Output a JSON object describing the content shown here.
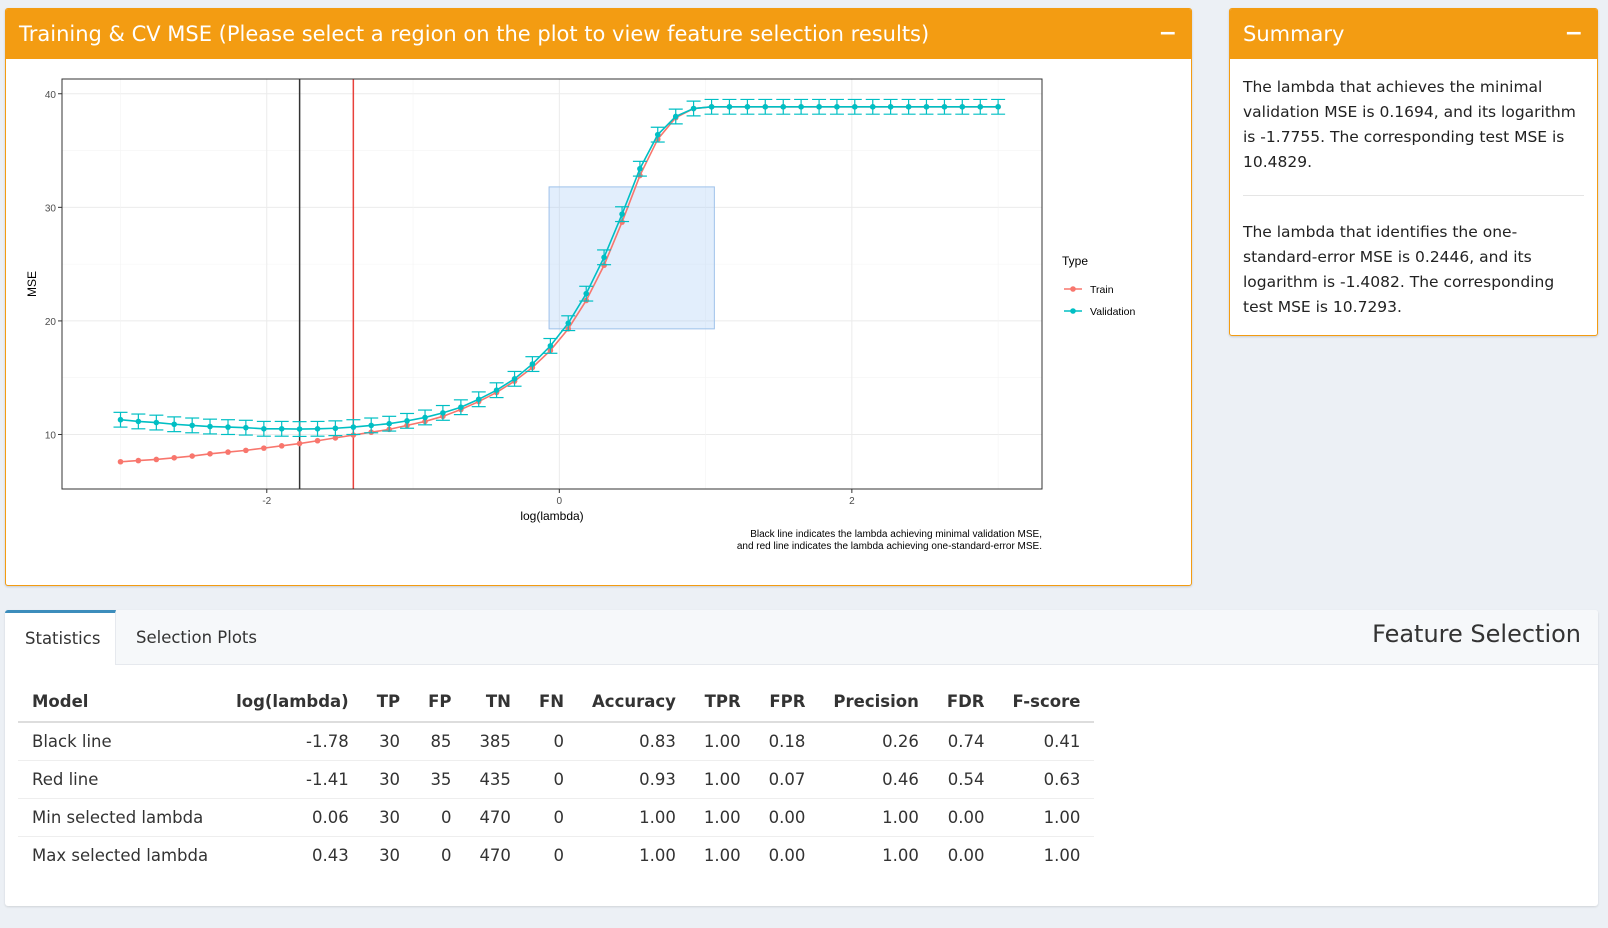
{
  "plot_panel": {
    "title": "Training & CV MSE (Please select a region on the plot to view feature selection results)",
    "collapse_label": "−"
  },
  "summary_panel": {
    "title": "Summary",
    "collapse_label": "−",
    "paragraphs": [
      "The lambda that achieves the minimal validation MSE is 0.1694, and its logarithm is -1.7755. The corresponding test MSE is 10.4829.",
      "The lambda that identifies the one-standard-error MSE is 0.2446, and its logarithm is -1.4082. The corresponding test MSE is 10.7293."
    ]
  },
  "feature_selection": {
    "title": "Feature Selection",
    "tabs": [
      {
        "label": "Statistics",
        "active": true
      },
      {
        "label": "Selection Plots",
        "active": false
      }
    ],
    "columns": [
      "Model",
      "log(lambda)",
      "TP",
      "FP",
      "TN",
      "FN",
      "Accuracy",
      "TPR",
      "FPR",
      "Precision",
      "FDR",
      "F-score"
    ],
    "rows": [
      [
        "Black line",
        "-1.78",
        "30",
        "85",
        "385",
        "0",
        "0.83",
        "1.00",
        "0.18",
        "0.26",
        "0.74",
        "0.41"
      ],
      [
        "Red line",
        "-1.41",
        "30",
        "35",
        "435",
        "0",
        "0.93",
        "1.00",
        "0.07",
        "0.46",
        "0.54",
        "0.63"
      ],
      [
        "Min selected lambda",
        "0.06",
        "30",
        "0",
        "470",
        "0",
        "1.00",
        "1.00",
        "0.00",
        "1.00",
        "0.00",
        "1.00"
      ],
      [
        "Max selected lambda",
        "0.43",
        "30",
        "0",
        "470",
        "0",
        "1.00",
        "1.00",
        "0.00",
        "1.00",
        "0.00",
        "1.00"
      ]
    ]
  },
  "chart_data": {
    "type": "line",
    "xlabel": "log(lambda)",
    "ylabel": "MSE",
    "xlim": [
      -3.4,
      3.3
    ],
    "ylim": [
      5.2,
      41.3
    ],
    "x_ticks": [
      -2,
      0,
      2
    ],
    "y_ticks": [
      10,
      20,
      30,
      40
    ],
    "grid": true,
    "legend": {
      "title": "Type",
      "position": "right"
    },
    "caption": [
      "Black line indicates the lambda achieving minimal validation MSE,",
      "and red line indicates the lambda achieving one-standard-error MSE."
    ],
    "vlines": [
      {
        "x": -1.7755,
        "color": "#333333"
      },
      {
        "x": -1.4082,
        "color": "#e8413b"
      }
    ],
    "selection": {
      "x": [
        -0.07,
        1.06
      ],
      "y": [
        19.3,
        31.8
      ]
    },
    "x": [
      -3.0,
      -2.878,
      -2.755,
      -2.633,
      -2.51,
      -2.388,
      -2.265,
      -2.143,
      -2.02,
      -1.898,
      -1.776,
      -1.653,
      -1.531,
      -1.408,
      -1.286,
      -1.163,
      -1.041,
      -0.918,
      -0.796,
      -0.673,
      -0.551,
      -0.429,
      -0.306,
      -0.184,
      -0.061,
      0.061,
      0.184,
      0.306,
      0.429,
      0.551,
      0.673,
      0.796,
      0.918,
      1.041,
      1.163,
      1.286,
      1.408,
      1.531,
      1.653,
      1.776,
      1.898,
      2.02,
      2.143,
      2.265,
      2.388,
      2.51,
      2.633,
      2.755,
      2.878,
      3.0
    ],
    "series": [
      {
        "name": "Train",
        "color": "#f8766d",
        "values": [
          7.6,
          7.7,
          7.8,
          7.95,
          8.1,
          8.3,
          8.45,
          8.6,
          8.8,
          9.0,
          9.2,
          9.45,
          9.7,
          9.95,
          10.2,
          10.45,
          10.8,
          11.15,
          11.6,
          12.2,
          12.9,
          13.7,
          14.7,
          15.9,
          17.4,
          19.3,
          21.8,
          24.9,
          28.7,
          32.8,
          36.0,
          37.9,
          38.7,
          38.85,
          38.85,
          38.85,
          38.85,
          38.85,
          38.85,
          38.85,
          38.85,
          38.85,
          38.85,
          38.85,
          38.85,
          38.85,
          38.85,
          38.85,
          38.85,
          38.85
        ]
      },
      {
        "name": "Validation",
        "color": "#00bfc4",
        "error": 0.65,
        "values": [
          11.3,
          11.15,
          11.05,
          10.9,
          10.8,
          10.7,
          10.65,
          10.6,
          10.5,
          10.5,
          10.48,
          10.5,
          10.55,
          10.65,
          10.8,
          10.95,
          11.2,
          11.5,
          11.9,
          12.4,
          13.1,
          13.9,
          14.9,
          16.2,
          17.8,
          19.8,
          22.4,
          25.6,
          29.4,
          33.4,
          36.4,
          38.0,
          38.7,
          38.85,
          38.85,
          38.85,
          38.85,
          38.85,
          38.85,
          38.85,
          38.85,
          38.85,
          38.85,
          38.85,
          38.85,
          38.85,
          38.85,
          38.85,
          38.85,
          38.85
        ]
      }
    ]
  }
}
